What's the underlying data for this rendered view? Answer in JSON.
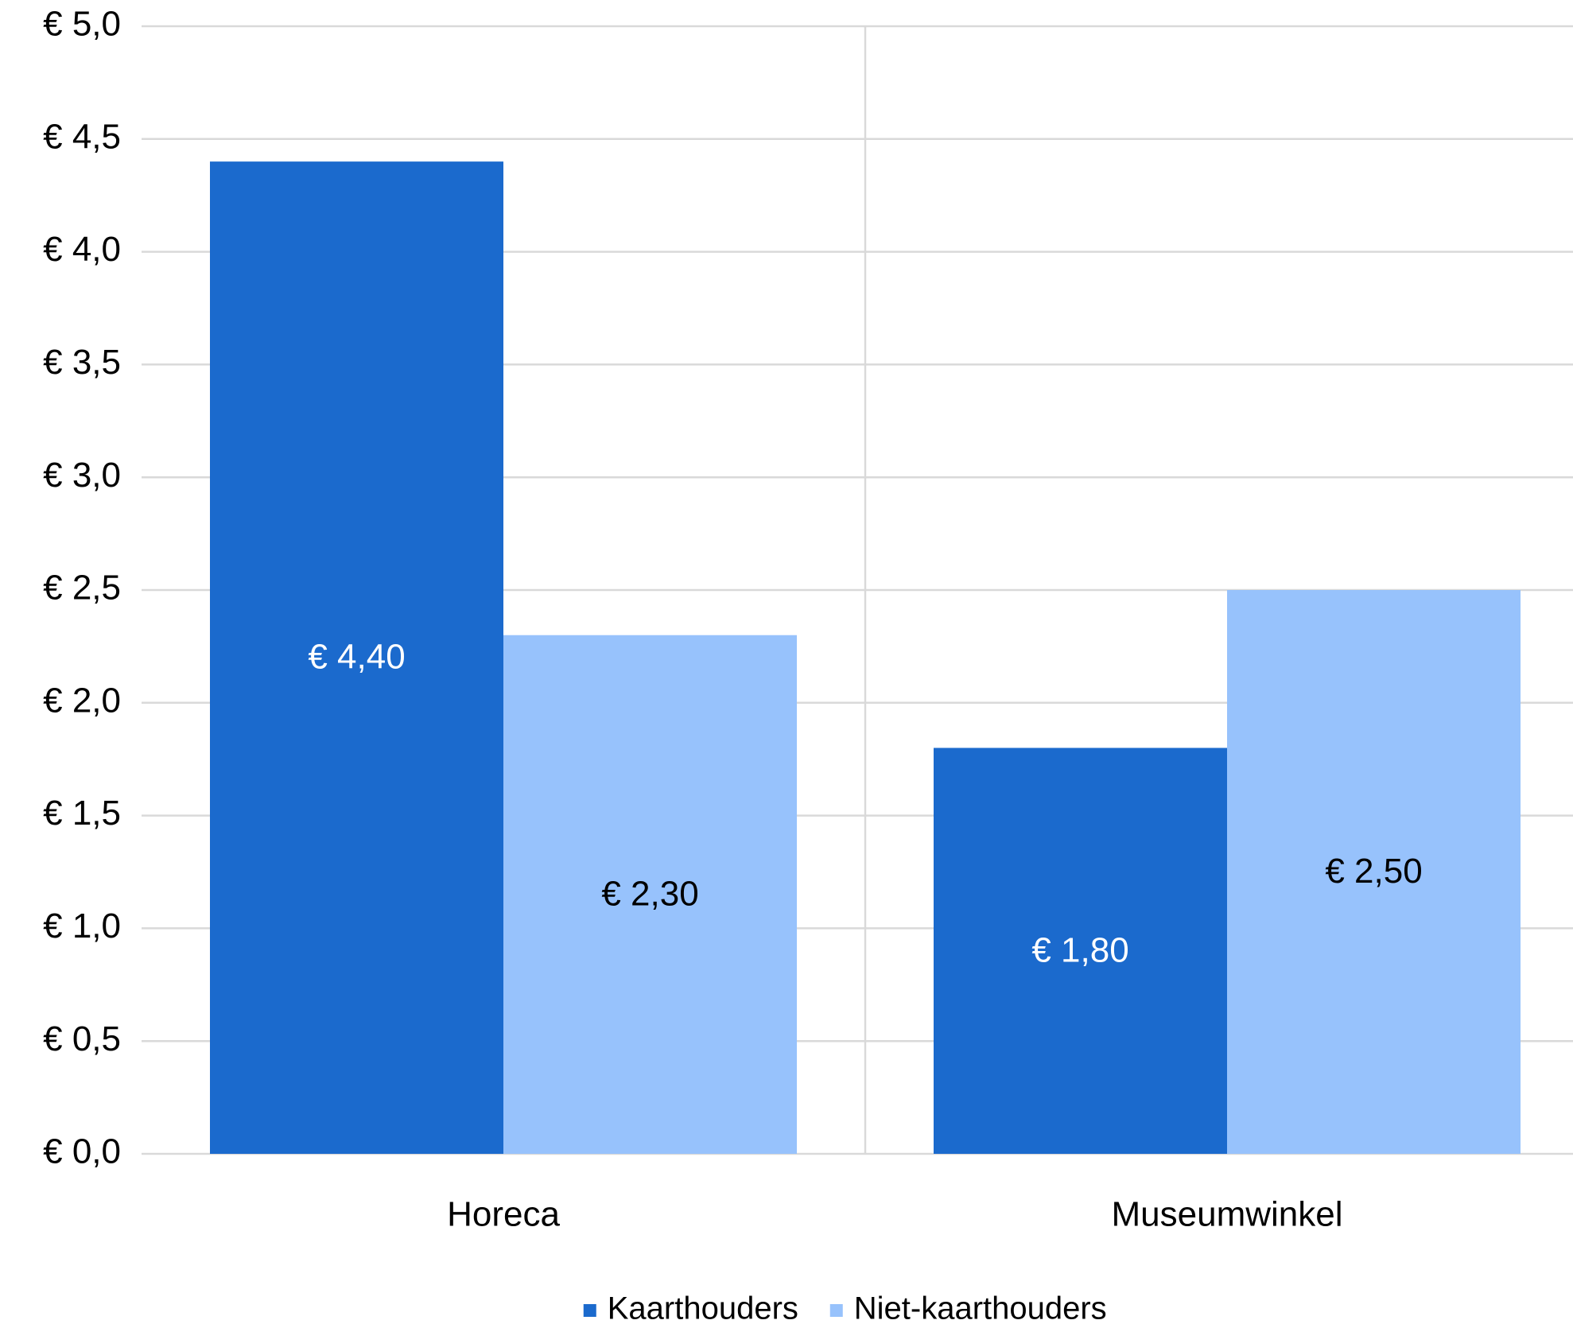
{
  "chart_data": {
    "type": "bar",
    "title": "",
    "xlabel": "",
    "ylabel": "",
    "categories": [
      "Horeca",
      "Museumwinkel"
    ],
    "series": [
      {
        "name": "Kaarthouders",
        "values": [
          4.4,
          1.8
        ],
        "labels": [
          "€ 4,40",
          "€ 1,80"
        ],
        "color": "#1b6acd",
        "label_color": "#ffffff"
      },
      {
        "name": "Niet-kaarthouders",
        "values": [
          2.3,
          2.5
        ],
        "labels": [
          "€ 2,30",
          "€ 2,50"
        ],
        "color": "#97c2fc",
        "label_color": "#000000"
      }
    ],
    "ylim": [
      0,
      5
    ],
    "yticks": [
      0,
      0.5,
      1,
      1.5,
      2,
      2.5,
      3,
      3.5,
      4,
      4.5,
      5
    ],
    "ytick_labels": [
      "€ 0,0",
      "€ 0,5",
      "€ 1,0",
      "€ 1,5",
      "€ 2,0",
      "€ 2,5",
      "€ 3,0",
      "€ 3,5",
      "€ 4,0",
      "€ 4,5",
      "€ 5,0"
    ],
    "grid": true,
    "gridline_color": "#d9d9d9",
    "legend": "bottom-center"
  }
}
